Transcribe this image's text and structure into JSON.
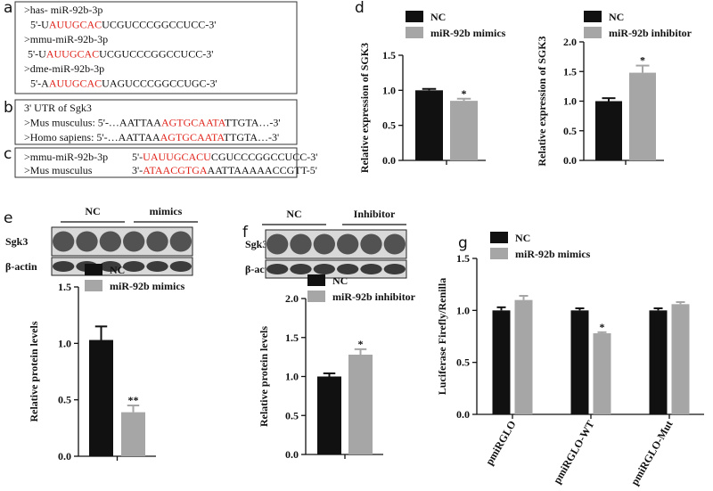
{
  "panel_labels": [
    "a",
    "b",
    "c",
    "d",
    "e",
    "f",
    "g"
  ],
  "sequences": {
    "a": [
      [
        {
          "text": ">has- miR-92b-3p"
        }
      ],
      [
        {
          "text": " 5'-U"
        },
        {
          "text": "AUUGCAC",
          "color": "#e0241b"
        },
        {
          "text": "UCGUCCCGGCCUCC-3'"
        }
      ],
      [
        {
          "text": ">mmu-miR-92b-3p"
        }
      ],
      [
        {
          "text": "5'-U"
        },
        {
          "text": "AUUGCAC",
          "color": "#e0241b"
        },
        {
          "text": "UCGUCCCGGCCUCC-3'"
        }
      ],
      [
        {
          "text": ">dme-miR-92b-3p"
        }
      ],
      [
        {
          "text": " 5'-A"
        },
        {
          "text": "AUUGCAC",
          "color": "#e0241b"
        },
        {
          "text": "UAGUCCCGGCCUGC-3'"
        }
      ]
    ],
    "b": [
      [
        {
          "text": "3' UTR of Sgk3"
        }
      ],
      [
        {
          "text": ">Mus musculus: 5'-…AATTAA"
        },
        {
          "text": "AGTGCAATA",
          "color": "#e0241b"
        },
        {
          "text": "TTGTA…-3'"
        }
      ],
      [
        {
          "text": ">Homo sapiens: 5'-…AATTAA"
        },
        {
          "text": "AGTGCAATA",
          "color": "#e0241b"
        },
        {
          "text": "TTGTA…-3'"
        }
      ]
    ],
    "c": [
      {
        "name": ">mmu-miR-92b-3p",
        "sequence": [
          {
            "text": "5'-"
          },
          {
            "text": "UAUUGCACU",
            "color": "#e0241b"
          },
          {
            "text": "CGUCCCGGCCUCC-3'"
          }
        ]
      },
      {
        "name": ">Mus musculus",
        "sequence": [
          {
            "text": "3'-"
          },
          {
            "text": "ATAACGTGA",
            "color": "#e0241b"
          },
          {
            "text": "AATTAAAAACCGTT-5'"
          }
        ]
      }
    ]
  },
  "blots": {
    "e": {
      "groups": [
        "NC",
        "mimics"
      ],
      "rows": [
        "Sgk3",
        "β-actin"
      ]
    },
    "f": {
      "groups": [
        "NC",
        "Inhibitor"
      ],
      "rows": [
        "Sgk3",
        "β-actin"
      ]
    }
  },
  "chart_data": [
    {
      "type": "bar",
      "y_label": "Relative expression of SGK3",
      "series": [
        {
          "name": "NC",
          "color": "#111111",
          "values": [
            1.0
          ],
          "errors": [
            0.02
          ]
        },
        {
          "name": "miR-92b mimics",
          "color": "#a6a6a6",
          "values": [
            0.85
          ],
          "errors": [
            0.03
          ],
          "significance": [
            "*"
          ]
        }
      ],
      "ylim": [
        0,
        1.5
      ],
      "yticks": [
        {
          "value": 0,
          "label": "0.0"
        },
        0.5,
        {
          "value": 1,
          "label": "1.0"
        },
        1.5
      ]
    },
    {
      "type": "bar",
      "y_label": "Relative expression of SGK3",
      "series": [
        {
          "name": "NC",
          "color": "#111111",
          "values": [
            1.0
          ],
          "errors": [
            0.05
          ]
        },
        {
          "name": "miR-92b inhibitor",
          "color": "#a6a6a6",
          "values": [
            1.48
          ],
          "errors": [
            0.12
          ],
          "significance": [
            "*"
          ]
        }
      ],
      "ylim": [
        0,
        2
      ],
      "yticks": [
        {
          "value": 0,
          "label": "0.0"
        },
        0.5,
        {
          "value": 1,
          "label": "1.0"
        },
        1.5,
        {
          "value": 2,
          "label": "2.0"
        }
      ]
    },
    {
      "type": "bar",
      "y_label": "Relative protein levels",
      "series": [
        {
          "name": "NC",
          "color": "#111111",
          "values": [
            1.03
          ],
          "errors": [
            0.12
          ]
        },
        {
          "name": "miR-92b mimics",
          "color": "#a6a6a6",
          "values": [
            0.39
          ],
          "errors": [
            0.06
          ],
          "significance": [
            "**"
          ]
        }
      ],
      "ylim": [
        0,
        1.5
      ],
      "yticks": [
        {
          "value": 0,
          "label": "0.0"
        },
        0.5,
        {
          "value": 1,
          "label": "1.0"
        },
        1.5
      ]
    },
    {
      "type": "bar",
      "y_label": "Relative protein levels",
      "series": [
        {
          "name": "NC",
          "color": "#111111",
          "values": [
            1.0
          ],
          "errors": [
            0.04
          ]
        },
        {
          "name": "miR-92b inhibitor",
          "color": "#a6a6a6",
          "values": [
            1.28
          ],
          "errors": [
            0.07
          ],
          "significance": [
            "*"
          ]
        }
      ],
      "ylim": [
        0,
        2
      ],
      "yticks": [
        {
          "value": 0,
          "label": "0.0"
        },
        0.5,
        {
          "value": 1,
          "label": "1.0"
        },
        1.5,
        {
          "value": 2,
          "label": "2.0"
        }
      ]
    },
    {
      "type": "bar",
      "y_label": "Luciferase Firefly/Renilla",
      "categories": [
        "pmiRGLO",
        "pmiRGLO-WT",
        "pmiRGLO-Mut"
      ],
      "series": [
        {
          "name": "NC",
          "color": "#111111",
          "values": [
            1.0,
            1.0,
            1.0
          ],
          "errors": [
            0.03,
            0.02,
            0.02
          ]
        },
        {
          "name": "miR-92b mimics",
          "color": "#a6a6a6",
          "values": [
            1.1,
            0.78,
            1.06
          ],
          "errors": [
            0.04,
            0.01,
            0.02
          ],
          "significance": [
            null,
            "*",
            null
          ]
        }
      ],
      "ylim": [
        0,
        1.5
      ],
      "yticks": [
        {
          "value": 0,
          "label": "0.0"
        },
        0.5,
        {
          "value": 1,
          "label": "1.0"
        },
        1.5
      ]
    }
  ]
}
